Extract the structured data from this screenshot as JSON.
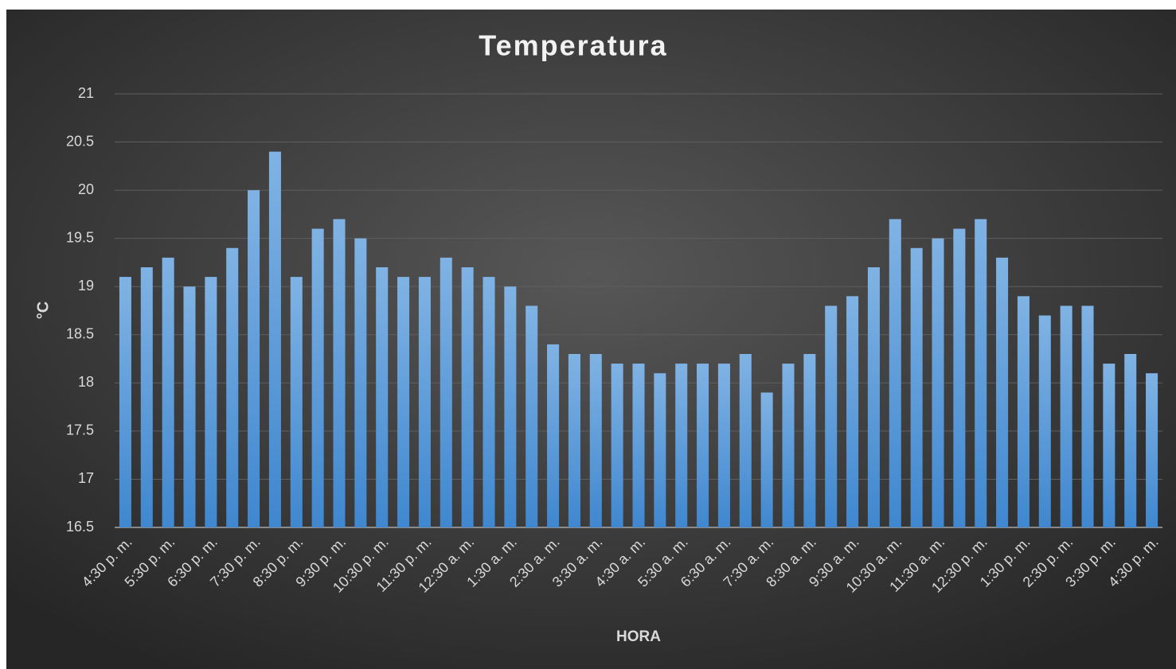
{
  "chart_data": {
    "type": "bar",
    "title": "Temperatura",
    "x_label": "HORA",
    "y_label": "°C",
    "categories": [
      "4:30 p. m.",
      null,
      "5:30 p. m.",
      null,
      "6:30 p. m.",
      null,
      "7:30 p. m.",
      null,
      "8:30 p. m.",
      null,
      "9:30 p. m.",
      null,
      "10:30 p. m.",
      null,
      "11:30 p. m.",
      null,
      "12:30 a. m.",
      null,
      "1:30 a. m.",
      null,
      "2:30 a. m.",
      null,
      "3:30 a. m.",
      null,
      "4:30 a. m.",
      null,
      "5:30 a. m.",
      null,
      "6:30 a. m.",
      null,
      "7:30 a. m.",
      null,
      "8:30 a. m.",
      null,
      "9:30 a. m.",
      null,
      "10:30 a. m.",
      null,
      "11:30 a. m.",
      null,
      "12:30 p. m.",
      null,
      "1:30 p. m.",
      null,
      "2:30 p. m.",
      null,
      "3:30 p. m.",
      null,
      "4:30 p. m."
    ],
    "values": [
      19.1,
      19.2,
      19.3,
      19.0,
      19.1,
      19.4,
      20.0,
      20.4,
      19.1,
      19.6,
      19.7,
      19.5,
      19.2,
      19.1,
      19.1,
      19.3,
      19.2,
      19.1,
      19.0,
      18.8,
      18.4,
      18.3,
      18.3,
      18.2,
      18.2,
      18.1,
      18.2,
      18.2,
      18.2,
      18.3,
      17.9,
      18.2,
      18.3,
      18.8,
      18.9,
      19.2,
      19.7,
      19.4,
      19.5,
      19.6,
      19.7,
      19.3,
      18.9,
      18.7,
      18.8,
      18.8,
      18.2,
      18.3,
      18.1
    ],
    "color": "#5b9bd5",
    "ylim": [
      16.5,
      21
    ],
    "yticks": [
      16.5,
      17,
      17.5,
      18,
      18.5,
      19,
      19.5,
      20,
      20.5,
      21
    ],
    "grid": true
  }
}
